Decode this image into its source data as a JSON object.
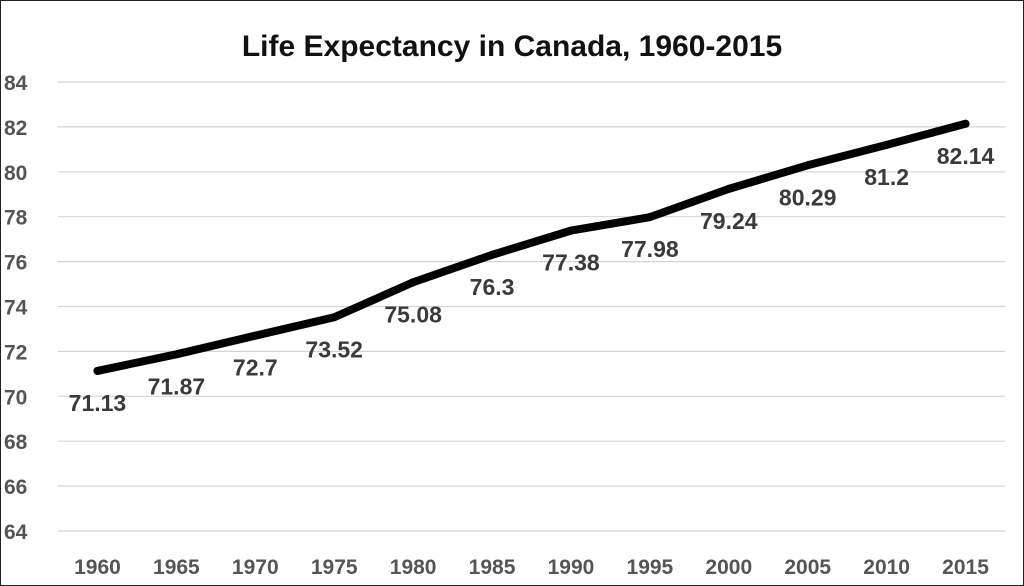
{
  "chart_data": {
    "type": "line",
    "title": "Life Expectancy in Canada, 1960-2015",
    "xlabel": "",
    "ylabel": "",
    "categories": [
      "1960",
      "1965",
      "1970",
      "1975",
      "1980",
      "1985",
      "1990",
      "1995",
      "2000",
      "2005",
      "2010",
      "2015"
    ],
    "series": [
      {
        "values": [
          71.13,
          71.87,
          72.7,
          73.52,
          75.08,
          76.3,
          77.38,
          77.98,
          79.24,
          80.29,
          81.2,
          82.14
        ],
        "data_labels": [
          "71.13",
          "71.87",
          "72.7",
          "73.52",
          "75.08",
          "76.3",
          "77.38",
          "77.98",
          "79.24",
          "80.29",
          "81.2",
          "82.14"
        ]
      }
    ],
    "ylim": [
      64,
      84
    ],
    "y_ticks": [
      "64",
      "66",
      "68",
      "70",
      "72",
      "74",
      "76",
      "78",
      "80",
      "82",
      "84"
    ],
    "grid": true,
    "legend": "none",
    "colors": {
      "line": "#000000",
      "grid": "#d4d4d4",
      "tick_text": "#555555",
      "label_text": "#3a3a3a",
      "title": "#111111"
    }
  }
}
